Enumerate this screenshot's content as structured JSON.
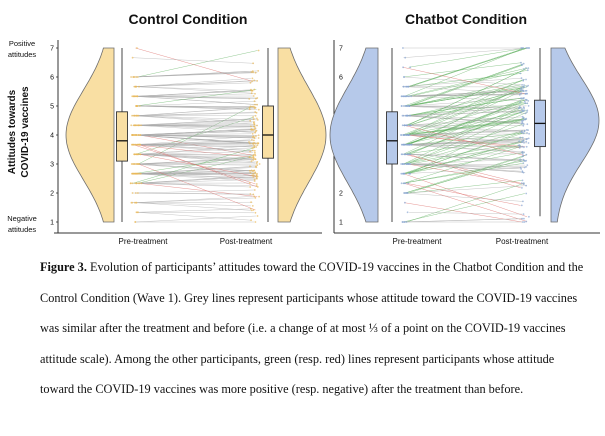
{
  "chart_data": [
    {
      "type": "raincloud",
      "title": "Control Condition",
      "ylabel": "Attitudes towards COVID-19 vaccines",
      "y_top_label": [
        "Positive",
        "attitudes"
      ],
      "y_bottom_label": [
        "Negative",
        "attitudes"
      ],
      "yticks": [
        "1",
        "2",
        "3",
        "4",
        "5",
        "6",
        "7"
      ],
      "ylim": [
        1,
        7
      ],
      "categories": [
        "Pre-treatment",
        "Post-treatment"
      ],
      "color": "#f9dfa3",
      "pre_box": {
        "q1": 3.1,
        "median": 3.8,
        "q3": 4.8,
        "whisker_low": 1,
        "whisker_high": 7
      },
      "post_box": {
        "q1": 3.2,
        "median": 4.0,
        "q3": 5.0,
        "whisker_low": 1,
        "whisker_high": 7
      },
      "pre_mode": 4.0,
      "post_mode": 4.0,
      "mean_change": 0.05,
      "share_green": 0.06,
      "share_red": 0.04
    },
    {
      "type": "raincloud",
      "title": "Chatbot Condition",
      "yticks": [
        "1",
        "2",
        "3",
        "4",
        "5",
        "6",
        "7"
      ],
      "ylim": [
        1,
        7
      ],
      "categories": [
        "Pre-treatment",
        "Post-treatment"
      ],
      "color": "#b6c9ea",
      "pre_box": {
        "q1": 3.0,
        "median": 3.8,
        "q3": 4.8,
        "whisker_low": 1,
        "whisker_high": 7
      },
      "post_box": {
        "q1": 3.6,
        "median": 4.4,
        "q3": 5.2,
        "whisker_low": 1.2,
        "whisker_high": 7
      },
      "pre_mode": 4.0,
      "post_mode": 4.5,
      "mean_change": 0.45,
      "share_green": 0.45,
      "share_red": 0.08
    }
  ],
  "caption": {
    "lead": "Figure 3.",
    "text": " Evolution of participants’ attitudes toward the COVID-19 vaccines in the Chatbot Condition and the Control Condition (Wave 1). Grey lines represent participants whose attitude toward the COVID-19 vaccines was similar after the treatment and before (i.e. a change of at most ⅓ of a point on the COVID-19 vaccines attitude scale). Among the other participants, green (resp. red) lines represent participants whose attitude toward the COVID-19 vaccines was more positive (resp. negative) after the treatment than before."
  }
}
